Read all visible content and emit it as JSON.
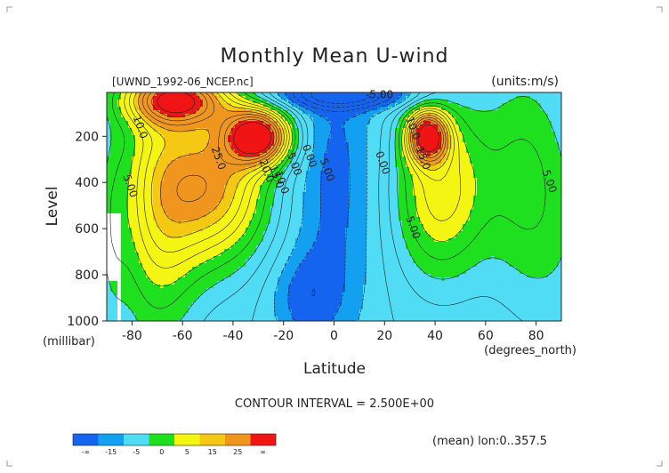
{
  "chart_data": {
    "type": "heatmap",
    "title": "Monthly Mean U-wind",
    "subtitle": "[UWND_1992-06_NCEP.nc]",
    "units_label": "(units:m/s)",
    "xlabel": "Latitude",
    "ylabel": "Level",
    "x_unit_label": "(degrees_north)",
    "y_unit_label": "(millibar)",
    "xlim": [
      -90,
      90
    ],
    "ylim": [
      1000,
      10
    ],
    "y_inverted": true,
    "x_ticks": [
      -80,
      -60,
      -40,
      -20,
      0,
      20,
      40,
      60,
      80
    ],
    "y_ticks": [
      200,
      400,
      600,
      800,
      1000
    ],
    "footer": "CONTOUR INTERVAL = 2.500E+00",
    "note": "(mean) lon:0..357.5",
    "contour_interval": 2.5,
    "contour_labels": [
      {
        "value": "10.0",
        "x": -78,
        "y": 165
      },
      {
        "value": "25.0",
        "x": -47,
        "y": 300
      },
      {
        "value": "20.0",
        "x": -28,
        "y": 355
      },
      {
        "value": "15.0",
        "x": -24,
        "y": 380
      },
      {
        "value": "10.0",
        "x": -22,
        "y": 405
      },
      {
        "value": "5.00",
        "x": -17,
        "y": 325
      },
      {
        "value": "0.00",
        "x": -11,
        "y": 290
      },
      {
        "value": "5.00",
        "x": -4,
        "y": 350
      },
      {
        "value": "-5.00",
        "x": 18,
        "y": 35
      },
      {
        "value": "0.00",
        "x": 18,
        "y": 320
      },
      {
        "value": "10.0",
        "x": 30,
        "y": 170
      },
      {
        "value": "15.0",
        "x": 34,
        "y": 300
      },
      {
        "value": "5.00",
        "x": -82,
        "y": 420
      },
      {
        "value": "5.00",
        "x": 30,
        "y": 600
      },
      {
        "value": "5.00",
        "x": 84,
        "y": 400
      }
    ],
    "jets": [
      {
        "lat": -30,
        "level": 200,
        "max": 30
      },
      {
        "lat": 38,
        "level": 200,
        "max": 27.5
      }
    ],
    "colorbar": {
      "colors": [
        "#1464f0",
        "#14a0f0",
        "#50dcf5",
        "#1ee01e",
        "#f5f514",
        "#f5c814",
        "#f0961e",
        "#f01414"
      ],
      "tick_labels": [
        "-∞",
        "-15",
        "-5",
        "0",
        "5",
        "15",
        "25",
        "∞"
      ]
    },
    "levels": [
      {
        "value": 5,
        "color": "#1ee01e"
      },
      {
        "value": 10,
        "color": "#f5f514"
      },
      {
        "value": 17.5,
        "color": "#f5c814"
      },
      {
        "value": 20,
        "color": "#f0961e"
      },
      {
        "value": 27.5,
        "color": "#f01414"
      }
    ],
    "neg_levels": [
      {
        "value": -2.5,
        "color": "#50dcf5"
      },
      {
        "value": -5,
        "color": "#14a0f0"
      },
      {
        "value": -10,
        "color": "#1464f0"
      }
    ]
  }
}
